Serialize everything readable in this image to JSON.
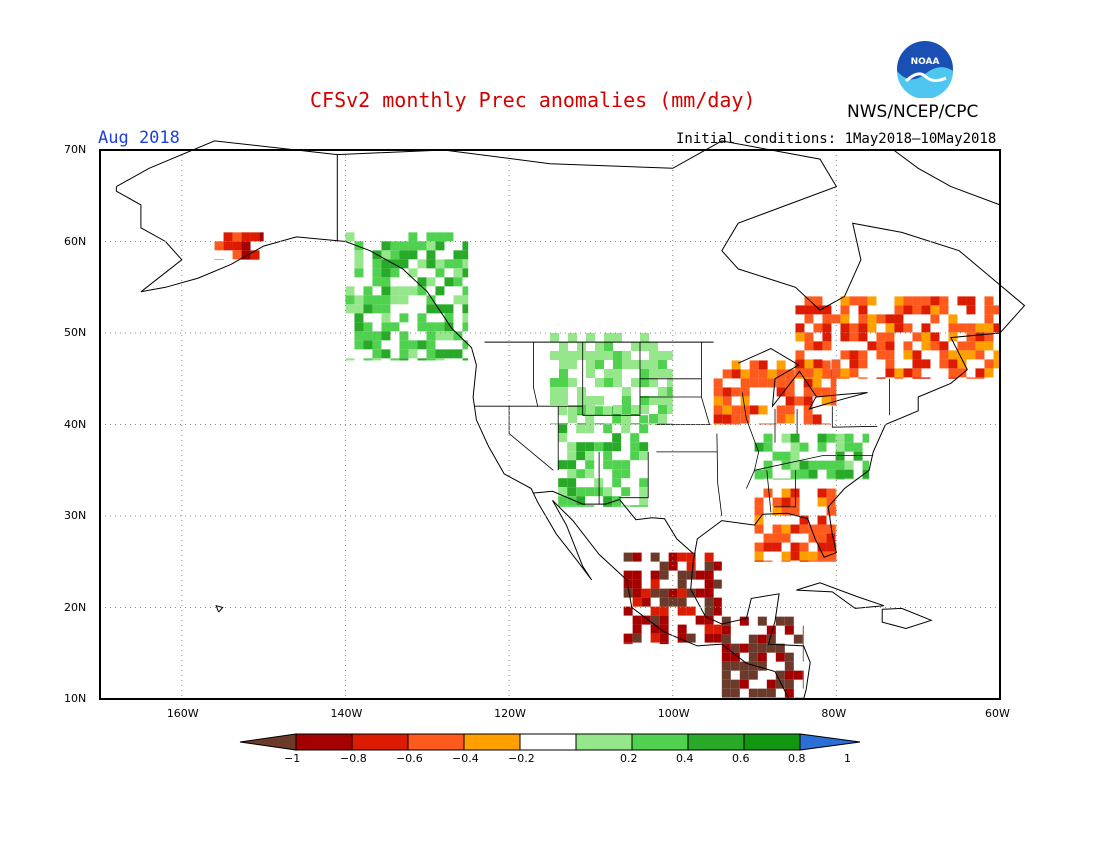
{
  "header": {
    "title": "CFSv2 monthly Prec anomalies (mm/day)",
    "month": "Aug 2018",
    "initial_conditions": "Initial conditions: 1May2018–10May2018",
    "agency": "NWS/NCEP/CPC",
    "logo_text": "NOAA",
    "logo_icon": "noaa-logo-icon"
  },
  "map": {
    "lon_range": [
      -170,
      -60
    ],
    "lat_range": [
      10,
      70
    ],
    "lat_labels": [
      "70N",
      "60N",
      "50N",
      "40N",
      "30N",
      "20N",
      "10N"
    ],
    "lon_labels": [
      "160W",
      "140W",
      "120W",
      "100W",
      "80W",
      "60W"
    ],
    "grid": "dotted",
    "anomaly_regions": [
      {
        "name": "alaska-south-coast",
        "lon": [
          -156,
          -150
        ],
        "lat": [
          58,
          61
        ],
        "value": -0.7
      },
      {
        "name": "pacific-northwest-coast",
        "lon": [
          -140,
          -125
        ],
        "lat": [
          47,
          61
        ],
        "value": 0.4
      },
      {
        "name": "southwest-monsoon",
        "lon": [
          -114,
          -103
        ],
        "lat": [
          31,
          42
        ],
        "value": 0.5
      },
      {
        "name": "mexico-pacific-coast",
        "lon": [
          -106,
          -94
        ],
        "lat": [
          16,
          26
        ],
        "value": -0.8
      },
      {
        "name": "central-america",
        "lon": [
          -94,
          -84
        ],
        "lat": [
          10,
          19
        ],
        "value": -1.0
      },
      {
        "name": "great-lakes",
        "lon": [
          -95,
          -80
        ],
        "lat": [
          40,
          47
        ],
        "value": -0.5
      },
      {
        "name": "quebec",
        "lon": [
          -85,
          -60
        ],
        "lat": [
          45,
          54
        ],
        "value": -0.4
      },
      {
        "name": "southeast-us",
        "lon": [
          -90,
          -76
        ],
        "lat": [
          34,
          39
        ],
        "value": 0.5
      },
      {
        "name": "florida-gulf",
        "lon": [
          -90,
          -80
        ],
        "lat": [
          25,
          33
        ],
        "value": -0.4
      },
      {
        "name": "northern-plains",
        "lon": [
          -115,
          -100
        ],
        "lat": [
          40,
          50
        ],
        "value": 0.3
      }
    ]
  },
  "colorbar": {
    "labels": [
      "−1",
      "−0.8",
      "−0.6",
      "−0.4",
      "−0.2",
      "0.2",
      "0.4",
      "0.6",
      "0.8",
      "1"
    ],
    "colors": [
      "#6b3a2a",
      "#a50000",
      "#dc1c00",
      "#ff5a1e",
      "#ffa000",
      "#ffffff",
      "#96e68c",
      "#50d250",
      "#28aa28",
      "#129612",
      "#2a6fd6"
    ]
  }
}
